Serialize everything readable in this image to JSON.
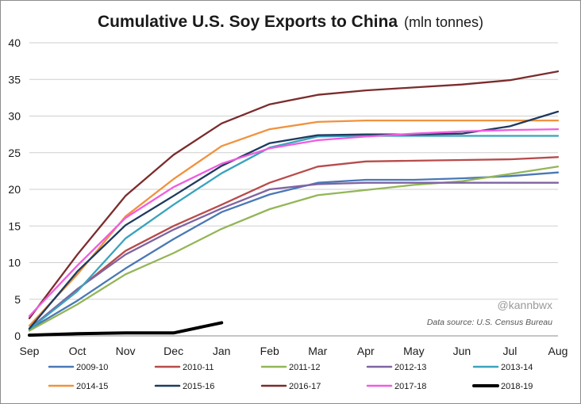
{
  "chart_data": {
    "type": "line",
    "title": "Cumulative U.S. Soy Exports to China",
    "subtitle": "(mln  tonnes)",
    "xlabel": "",
    "ylabel": "",
    "x": [
      "Sep",
      "Oct",
      "Nov",
      "Dec",
      "Jan",
      "Feb",
      "Mar",
      "Apr",
      "May",
      "Jun",
      "Jul",
      "Aug"
    ],
    "ylim": [
      0,
      40
    ],
    "yticks": [
      "0",
      "5",
      "10",
      "15",
      "20",
      "25",
      "30",
      "35",
      "40"
    ],
    "grid": "horizontal",
    "legend_position": "bottom",
    "series": [
      {
        "name": "2009-10",
        "color": "#4a78b5",
        "values": [
          0.9,
          4.8,
          9.2,
          13.2,
          16.9,
          19.3,
          20.9,
          21.3,
          21.3,
          21.5,
          21.8,
          22.3
        ]
      },
      {
        "name": "2010-11",
        "color": "#b84b4b",
        "values": [
          0.9,
          6.3,
          11.6,
          15.0,
          17.9,
          20.9,
          23.1,
          23.8,
          23.9,
          24.0,
          24.1,
          24.4
        ]
      },
      {
        "name": "2011-12",
        "color": "#93b657",
        "values": [
          0.7,
          4.3,
          8.4,
          11.3,
          14.6,
          17.3,
          19.2,
          19.9,
          20.6,
          21.1,
          22.1,
          23.1
        ]
      },
      {
        "name": "2012-13",
        "color": "#7f64a2",
        "values": [
          1.0,
          6.4,
          11.1,
          14.5,
          17.4,
          20.0,
          20.7,
          20.9,
          20.9,
          20.9,
          20.9,
          20.9
        ]
      },
      {
        "name": "2013-14",
        "color": "#3aa3bd",
        "values": [
          0.9,
          6.1,
          13.3,
          17.9,
          22.2,
          25.7,
          27.2,
          27.3,
          27.3,
          27.3,
          27.3,
          27.3
        ]
      },
      {
        "name": "2014-15",
        "color": "#f0923d",
        "values": [
          1.4,
          8.4,
          16.3,
          21.4,
          25.9,
          28.2,
          29.2,
          29.4,
          29.4,
          29.4,
          29.4,
          29.4
        ]
      },
      {
        "name": "2015-16",
        "color": "#1e3a5f",
        "values": [
          1.0,
          8.8,
          15.1,
          19.1,
          23.2,
          26.3,
          27.4,
          27.5,
          27.5,
          27.6,
          28.6,
          30.6
        ]
      },
      {
        "name": "2016-17",
        "color": "#7b2c2c",
        "values": [
          2.4,
          11.1,
          19.1,
          24.7,
          29.0,
          31.6,
          32.9,
          33.5,
          33.9,
          34.3,
          34.9,
          36.1
        ]
      },
      {
        "name": "2017-18",
        "color": "#f05ce0",
        "values": [
          2.7,
          9.6,
          16.1,
          20.3,
          23.5,
          25.6,
          26.7,
          27.2,
          27.6,
          27.9,
          28.1,
          28.2
        ]
      },
      {
        "name": "2018-19",
        "color": "#000000",
        "values": [
          0.1,
          0.3,
          0.4,
          0.4,
          1.8,
          null,
          null,
          null,
          null,
          null,
          null,
          null
        ]
      }
    ]
  },
  "credit": "@kannbwx",
  "source": "Data source: U.S. Census Bureau"
}
